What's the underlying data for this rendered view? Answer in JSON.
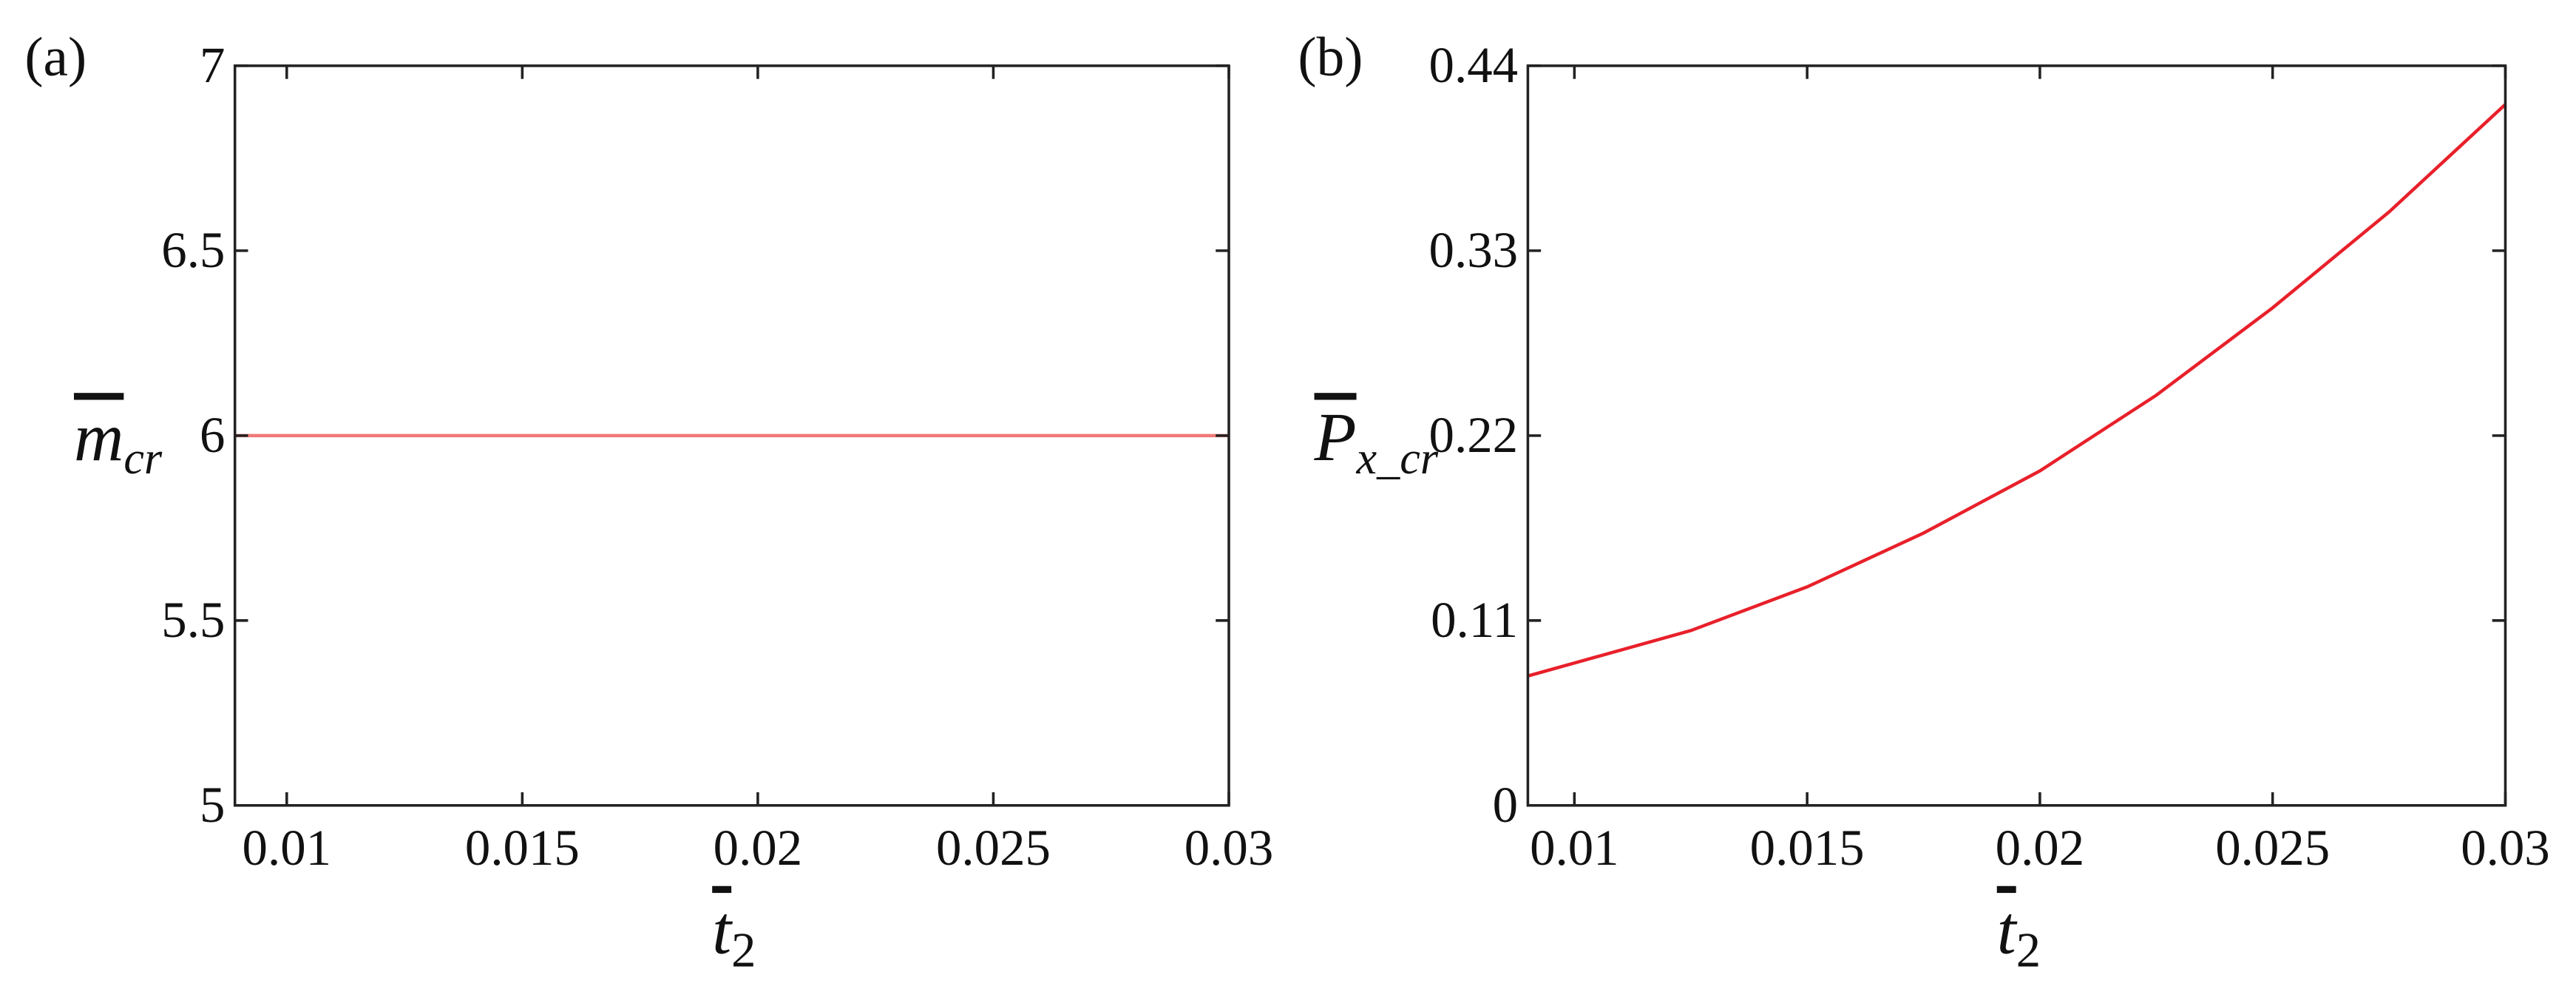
{
  "chart_data": [
    {
      "type": "line",
      "panel_label": "(a)",
      "ylabel": "m",
      "ylabel_sub": "cr",
      "xlabel": "t",
      "xlabel_sub": "2",
      "xlim": [
        0.0089,
        0.03
      ],
      "xticks": [
        0.01,
        0.015,
        0.02,
        0.025,
        0.03
      ],
      "ylim": [
        5,
        7
      ],
      "yticks": [
        5,
        5.5,
        6,
        6.5,
        7
      ],
      "series": [
        {
          "color": "#f07878",
          "x": [
            0.0089,
            0.03
          ],
          "values": [
            6,
            6
          ]
        }
      ]
    },
    {
      "type": "line",
      "panel_label": "(b)",
      "ylabel": "P",
      "ylabel_sub": "x_cr",
      "xlabel": "t",
      "xlabel_sub": "2",
      "xlim": [
        0.009,
        0.03
      ],
      "xticks": [
        0.01,
        0.015,
        0.02,
        0.025,
        0.03
      ],
      "ylim": [
        0,
        0.44
      ],
      "yticks": [
        0,
        0.11,
        0.22,
        0.33,
        0.44
      ],
      "series": [
        {
          "color": "#e8202a",
          "x": [
            0.009,
            0.0125,
            0.015,
            0.0175,
            0.02,
            0.0225,
            0.025,
            0.0275,
            0.03
          ],
          "values": [
            0.077,
            0.104,
            0.13,
            0.162,
            0.199,
            0.244,
            0.296,
            0.353,
            0.417
          ]
        }
      ]
    }
  ]
}
